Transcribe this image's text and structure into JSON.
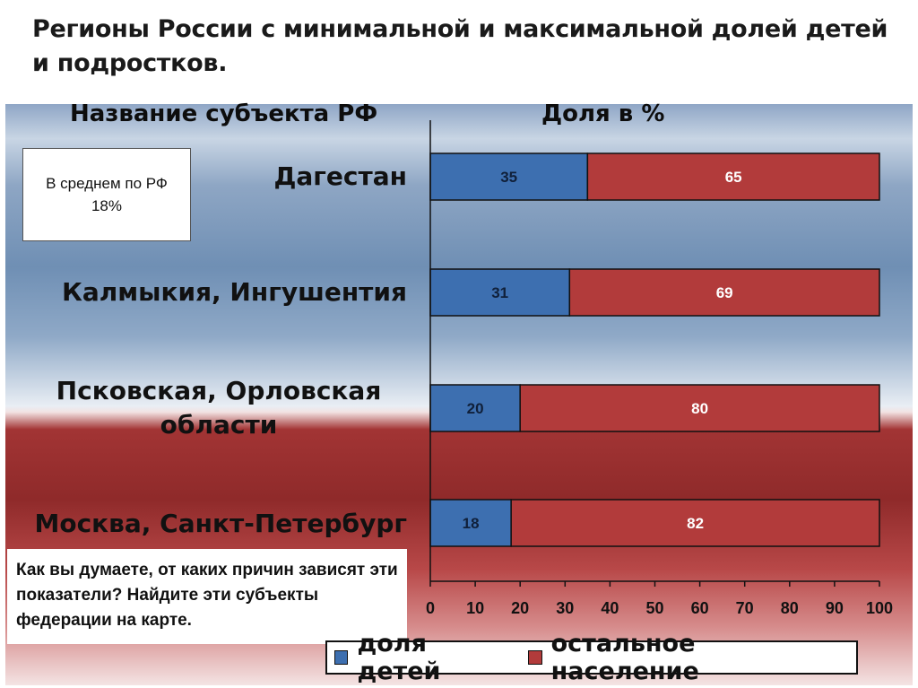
{
  "title": "Регионы России с минимальной и максимальной долей детей и подростков.",
  "headers": {
    "subject": "Название субъекта РФ",
    "share": "Доля в %"
  },
  "average_box": {
    "line1": "В среднем по РФ",
    "line2": "18%"
  },
  "question": "Как вы думаете, от каких причин зависят эти показатели? Найдите эти субъекты федерации на карте.",
  "colors": {
    "children": "#3d6fb0",
    "rest": "#b23b3b",
    "axis": "#111111"
  },
  "chart_data": {
    "type": "bar",
    "orientation": "horizontal",
    "stacked": true,
    "categories": [
      "Дагестан",
      "Калмыкия, Ингушентия",
      "Псковская, Орловская области",
      "Москва, Санкт-Петербург"
    ],
    "series": [
      {
        "name": "доля детей",
        "values": [
          35,
          31,
          20,
          18
        ]
      },
      {
        "name": "остальное население",
        "values": [
          65,
          69,
          80,
          82
        ]
      }
    ],
    "xlim": [
      0,
      100
    ],
    "x_ticks": [
      "0",
      "10",
      "20",
      "30",
      "40",
      "50",
      "60",
      "70",
      "80",
      "90",
      "100"
    ],
    "legend_position": "bottom",
    "grid": false
  }
}
